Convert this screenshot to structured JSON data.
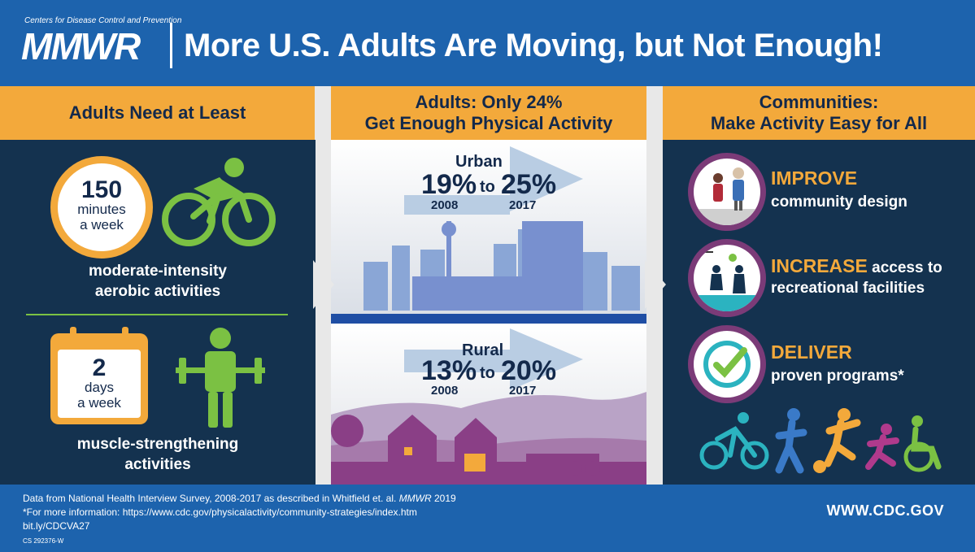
{
  "header": {
    "agency": "Centers for Disease Control and Prevention",
    "logo_text": "MMWR",
    "headline": "More U.S. Adults Are Moving, but Not Enough!"
  },
  "columns": {
    "left_title": "Adults Need at Least",
    "mid_title_line1": "Adults: Only 24%",
    "mid_title_line2": "Get Enough Physical Activity",
    "right_title_line1": "Communities:",
    "right_title_line2": "Make Activity Easy for All"
  },
  "left": {
    "aerobic_number": "150",
    "aerobic_unit_line1": "minutes",
    "aerobic_unit_line2": "a week",
    "aerobic_caption_line1": "moderate-intensity",
    "aerobic_caption_line2": "aerobic activities",
    "strength_number": "2",
    "strength_unit_line1": "days",
    "strength_unit_line2": "a week",
    "strength_caption_line1": "muscle-strengthening",
    "strength_caption_line2": "activities"
  },
  "middle": {
    "urban": {
      "label": "Urban",
      "from": "19%",
      "to_word": "to",
      "to": "25%",
      "year_from": "2008",
      "year_to": "2017"
    },
    "rural": {
      "label": "Rural",
      "from": "13%",
      "to_word": "to",
      "to": "20%",
      "year_from": "2008",
      "year_to": "2017"
    }
  },
  "right": {
    "items": [
      {
        "title": "IMPROVE",
        "title_suffix": "",
        "sub": "community design"
      },
      {
        "title": "INCREASE",
        "title_suffix": " access to",
        "sub": "recreational facilities"
      },
      {
        "title": "DELIVER",
        "title_suffix": "",
        "sub": "proven programs*"
      }
    ]
  },
  "footer": {
    "line1_prefix": "Data from National Health Interview Survey, 2008-2017 as described in Whitfield et. al. ",
    "line1_italic": "MMWR",
    "line1_suffix": " 2019",
    "line2": "*For more information: https://www.cdc.gov/physicalactivity/community-strategies/index.htm",
    "line3": "bit.ly/CDCVA27",
    "code": "CS 292376-W",
    "website": "WWW.CDC.GOV"
  },
  "colors": {
    "blue": "#1d63ad",
    "navy": "#14324f",
    "orange": "#f3a93b",
    "green": "#7bc143",
    "purple": "#7b3b78",
    "teal": "#2bb3c0"
  }
}
